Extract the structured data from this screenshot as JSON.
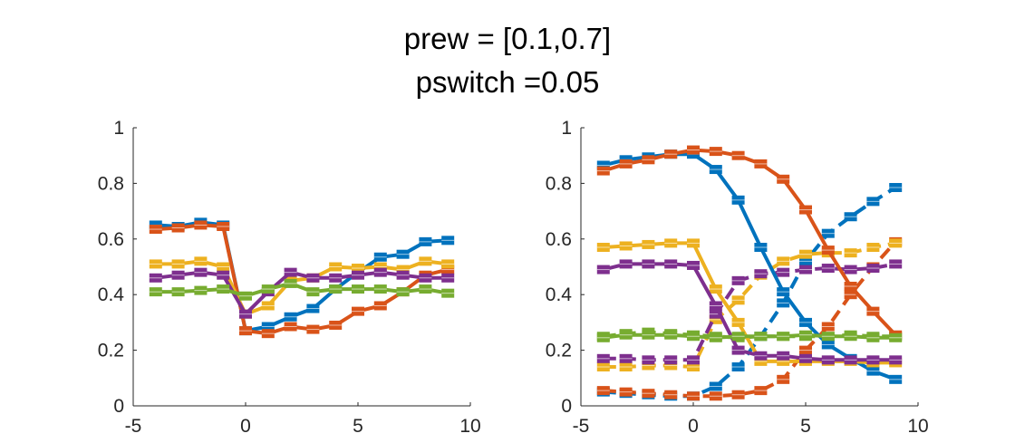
{
  "figure": {
    "title_lines": [
      "prew = [0.1,0.7]",
      "pswitch =0.05"
    ]
  },
  "chart_data": [
    {
      "type": "line",
      "panel": "left",
      "xlim": [
        -5,
        10
      ],
      "ylim": [
        0,
        1
      ],
      "xticks": [
        -5,
        0,
        5,
        10
      ],
      "yticks": [
        0,
        0.2,
        0.4,
        0.6,
        0.8,
        1
      ],
      "xtick_labels": [
        "-5",
        "0",
        "5",
        "10"
      ],
      "ytick_labels": [
        "0",
        "0.2",
        "0.4",
        "0.6",
        "0.8",
        "1"
      ],
      "x": [
        -4,
        -3,
        -2,
        -1,
        0,
        1,
        2,
        3,
        4,
        5,
        6,
        7,
        8,
        9
      ],
      "grid": false,
      "series": [
        {
          "color": "#0072BD",
          "style": "solid",
          "values": [
            0.65,
            0.645,
            0.66,
            0.65,
            0.27,
            0.285,
            0.32,
            0.35,
            0.42,
            0.48,
            0.535,
            0.545,
            0.59,
            0.595
          ]
        },
        {
          "color": "#D95319",
          "style": "solid",
          "values": [
            0.635,
            0.64,
            0.65,
            0.645,
            0.27,
            0.26,
            0.285,
            0.275,
            0.29,
            0.34,
            0.36,
            0.41,
            0.47,
            0.49
          ]
        },
        {
          "color": "#EDB120",
          "style": "solid",
          "values": [
            0.51,
            0.51,
            0.52,
            0.5,
            0.33,
            0.36,
            0.45,
            0.46,
            0.5,
            0.495,
            0.5,
            0.49,
            0.52,
            0.51
          ]
        },
        {
          "color": "#7E2F8E",
          "style": "solid",
          "values": [
            0.46,
            0.47,
            0.48,
            0.47,
            0.33,
            0.41,
            0.48,
            0.46,
            0.46,
            0.47,
            0.48,
            0.47,
            0.46,
            0.46
          ]
        },
        {
          "color": "#77AC30",
          "style": "solid",
          "values": [
            0.41,
            0.41,
            0.415,
            0.42,
            0.395,
            0.42,
            0.44,
            0.41,
            0.42,
            0.42,
            0.42,
            0.41,
            0.42,
            0.405
          ]
        }
      ]
    },
    {
      "type": "line",
      "panel": "right",
      "xlim": [
        -5,
        10
      ],
      "ylim": [
        0,
        1
      ],
      "xticks": [
        -5,
        0,
        5,
        10
      ],
      "yticks": [
        0,
        0.2,
        0.4,
        0.6,
        0.8,
        1
      ],
      "xtick_labels": [
        "-5",
        "0",
        "5",
        "10"
      ],
      "ytick_labels": [
        "0",
        "0.2",
        "0.4",
        "0.6",
        "0.8",
        "1"
      ],
      "x": [
        -4,
        -3,
        -2,
        -1,
        0,
        1,
        2,
        3,
        4,
        5,
        6,
        7,
        8,
        9
      ],
      "grid": false,
      "series": [
        {
          "color": "#0072BD",
          "style": "solid",
          "values": [
            0.865,
            0.885,
            0.895,
            0.905,
            0.905,
            0.85,
            0.74,
            0.57,
            0.41,
            0.3,
            0.22,
            0.17,
            0.125,
            0.095
          ]
        },
        {
          "color": "#D95319",
          "style": "solid",
          "values": [
            0.845,
            0.87,
            0.885,
            0.905,
            0.92,
            0.915,
            0.9,
            0.87,
            0.815,
            0.705,
            0.56,
            0.43,
            0.34,
            0.255
          ]
        },
        {
          "color": "#EDB120",
          "style": "solid",
          "values": [
            0.57,
            0.575,
            0.58,
            0.585,
            0.585,
            0.42,
            0.3,
            0.16,
            0.16,
            0.16,
            0.16,
            0.16,
            0.155,
            0.155
          ]
        },
        {
          "color": "#7E2F8E",
          "style": "solid",
          "values": [
            0.49,
            0.51,
            0.51,
            0.51,
            0.505,
            0.36,
            0.2,
            0.18,
            0.18,
            0.17,
            0.165,
            0.165,
            0.165,
            0.165
          ]
        },
        {
          "color": "#77AC30",
          "style": "solid",
          "values": [
            0.245,
            0.255,
            0.255,
            0.255,
            0.25,
            0.245,
            0.25,
            0.25,
            0.25,
            0.255,
            0.25,
            0.25,
            0.245,
            0.245
          ]
        },
        {
          "color": "#0072BD",
          "style": "dashed",
          "values": [
            0.05,
            0.045,
            0.04,
            0.035,
            0.035,
            0.07,
            0.14,
            0.25,
            0.37,
            0.52,
            0.62,
            0.68,
            0.735,
            0.785
          ]
        },
        {
          "color": "#D95319",
          "style": "dashed",
          "values": [
            0.055,
            0.05,
            0.045,
            0.04,
            0.035,
            0.035,
            0.04,
            0.055,
            0.095,
            0.2,
            0.285,
            0.4,
            0.5,
            0.59
          ]
        },
        {
          "color": "#EDB120",
          "style": "dashed",
          "values": [
            0.14,
            0.14,
            0.145,
            0.145,
            0.14,
            0.31,
            0.38,
            0.47,
            0.52,
            0.545,
            0.55,
            0.55,
            0.57,
            0.585
          ]
        },
        {
          "color": "#7E2F8E",
          "style": "dashed",
          "values": [
            0.17,
            0.17,
            0.165,
            0.165,
            0.165,
            0.33,
            0.45,
            0.475,
            0.48,
            0.49,
            0.495,
            0.49,
            0.495,
            0.51
          ]
        },
        {
          "color": "#77AC30",
          "style": "dashed",
          "values": [
            0.25,
            0.26,
            0.265,
            0.26,
            0.255,
            0.25,
            0.245,
            0.25,
            0.25,
            0.25,
            0.25,
            0.255,
            0.25,
            0.25
          ]
        }
      ]
    }
  ]
}
